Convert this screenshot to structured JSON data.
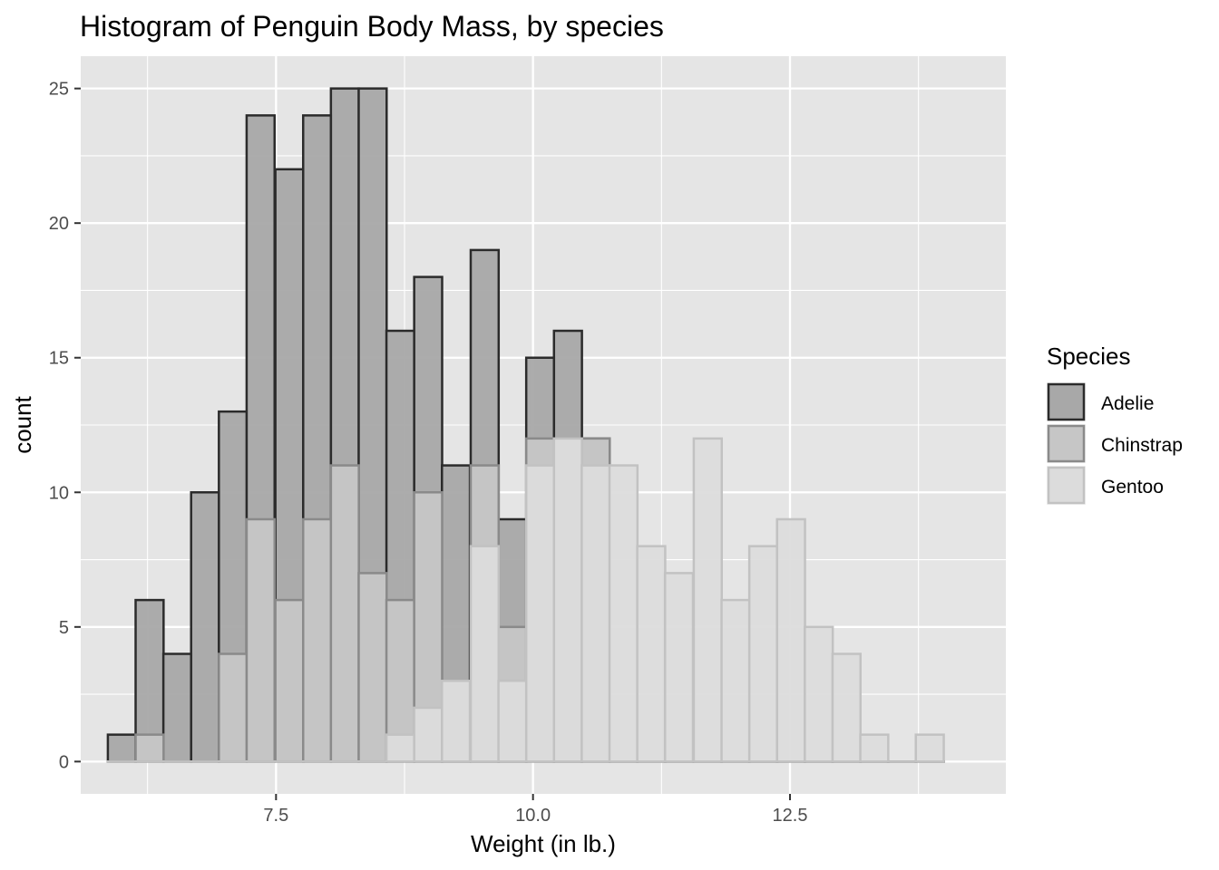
{
  "chart_data": {
    "type": "bar",
    "subtype": "overlapping-histogram",
    "title": "Histogram of Penguin Body Mass, by species",
    "xlabel": "Weight (in lb.)",
    "ylabel": "count",
    "xlim": [
      5.6,
      14.6
    ],
    "ylim": [
      -1.2,
      26.2
    ],
    "xticks": [
      7.5,
      10.0,
      12.5
    ],
    "xtick_labels": [
      "7.5",
      "10.0",
      "12.5"
    ],
    "yticks": [
      0,
      5,
      10,
      15,
      20,
      25
    ],
    "ytick_labels": [
      "0",
      "5",
      "10",
      "15",
      "20",
      "25"
    ],
    "grid": true,
    "legend": {
      "title": "Species",
      "placement": "right",
      "entries": [
        "Adelie",
        "Chinstrap",
        "Gentoo"
      ]
    },
    "bin_centers": [
      6.0,
      6.27,
      6.54,
      6.81,
      7.08,
      7.35,
      7.63,
      7.9,
      8.17,
      8.44,
      8.71,
      8.98,
      9.25,
      9.53,
      9.8,
      10.07,
      10.34,
      10.61,
      10.88,
      11.15,
      11.42,
      11.7,
      11.97,
      12.24,
      12.51,
      12.78,
      13.05,
      13.32,
      13.59,
      13.86
    ],
    "bin_width": 0.272,
    "series": [
      {
        "name": "Adelie",
        "fill": "#a8a8a8",
        "stroke": "#2b2b2b",
        "values": [
          1,
          6,
          4,
          10,
          13,
          24,
          22,
          24,
          25,
          25,
          16,
          18,
          11,
          19,
          9,
          15,
          16,
          12,
          0,
          0,
          0,
          0,
          0,
          0,
          0,
          0,
          0,
          0,
          0,
          0
        ]
      },
      {
        "name": "Chinstrap",
        "fill": "#c6c6c6",
        "stroke": "#8a8a8a",
        "values": [
          0,
          1,
          0,
          0,
          4,
          9,
          6,
          9,
          11,
          7,
          6,
          10,
          3,
          11,
          5,
          12,
          12,
          12,
          0,
          0,
          0,
          0,
          0,
          0,
          0,
          0,
          0,
          0,
          0,
          0
        ]
      },
      {
        "name": "Gentoo",
        "fill": "#dcdcdc",
        "stroke": "#c2c2c2",
        "values": [
          0,
          0,
          0,
          0,
          0,
          0,
          0,
          0,
          0,
          0,
          1,
          2,
          3,
          8,
          3,
          11,
          12,
          11,
          11,
          8,
          7,
          12,
          6,
          8,
          9,
          5,
          4,
          1,
          0,
          1
        ]
      }
    ]
  },
  "colors": {
    "panel_bg": "#e5e5e5",
    "grid_major": "#ffffff",
    "tick": "#333333"
  }
}
